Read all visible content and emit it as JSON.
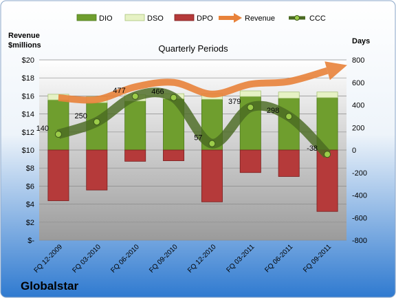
{
  "chart_data": {
    "type": "bar",
    "title": "Quarterly Periods",
    "company": "Globalstar",
    "left_axis_label": [
      "Revenue",
      "$millions"
    ],
    "right_axis_label": "Days",
    "left_ylim": [
      0,
      20
    ],
    "left_ticks": [
      "$20",
      "$18",
      "$16",
      "$14",
      "$12",
      "$10",
      "$8",
      "$6",
      "$4",
      "$2",
      "$-"
    ],
    "right_ylim": [
      -800,
      800
    ],
    "right_ticks": [
      "800",
      "600",
      "400",
      "200",
      "0",
      "-200",
      "-400",
      "-600",
      "-800"
    ],
    "grid": true,
    "legend_position": "top",
    "categories": [
      "FQ 12-2009",
      "FQ 03-2010",
      "FQ 06-2010",
      "FQ 09-2010",
      "FQ 12-2010",
      "FQ 03-2011",
      "FQ 06-2011",
      "FQ 09-2011"
    ],
    "series": [
      {
        "name": "DIO",
        "type": "bar",
        "axis": "days",
        "color": "#6f9e2e",
        "values": [
          445,
          420,
          435,
          455,
          450,
          475,
          460,
          465
        ]
      },
      {
        "name": "DSO",
        "type": "bar",
        "axis": "days",
        "color": "#e6f2c4",
        "values": [
          50,
          55,
          55,
          45,
          50,
          50,
          55,
          50
        ]
      },
      {
        "name": "DPO",
        "type": "bar",
        "axis": "days",
        "color": "#b53a3a",
        "values": [
          -450,
          -355,
          -100,
          -95,
          -460,
          -200,
          -235,
          -545
        ]
      },
      {
        "name": "Revenue",
        "type": "line",
        "axis": "revenue",
        "color": "#e8823a",
        "values": [
          15.8,
          15.6,
          17.0,
          17.5,
          16.2,
          17.3,
          17.6,
          18.8
        ]
      },
      {
        "name": "CCC",
        "type": "line",
        "axis": "days",
        "color": "#5a7a2a",
        "values": [
          140,
          250,
          477,
          466,
          57,
          379,
          298,
          -38
        ],
        "labels": [
          "140",
          "250",
          "477",
          "466",
          "57",
          "379",
          "298",
          "-38"
        ]
      }
    ]
  }
}
